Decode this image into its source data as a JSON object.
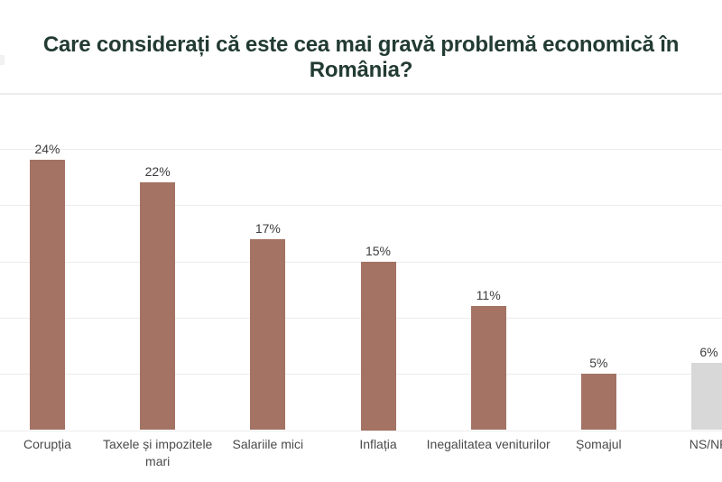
{
  "page": {
    "background": "#ffffff"
  },
  "chart_data": {
    "type": "bar",
    "title": "Care considerați că este cea mai gravă problemă economică în România?",
    "categories": [
      "Corupția",
      "Taxele și impozitele mari",
      "Salariile mici",
      "Inflația",
      "Inegalitatea veniturilor",
      "Șomajul",
      "NS/NR"
    ],
    "values": [
      24,
      22,
      17,
      15,
      11,
      5,
      6
    ],
    "unit": "%",
    "data_labels": [
      "24%",
      "22%",
      "17%",
      "15%",
      "11%",
      "5%",
      "6%"
    ],
    "bar_colors": [
      "#a47363",
      "#a47363",
      "#a47363",
      "#a47363",
      "#a47363",
      "#a47363",
      "#d8d8d8"
    ],
    "xlabel": "",
    "ylabel": "",
    "ylim": [
      0,
      30
    ],
    "gridline_step": 5,
    "grid": true,
    "legend_position": "none",
    "notes": "ultimul segment (NS/NR) este tăiat de marginea din dreapta"
  },
  "colors": {
    "title_text": "#223b33",
    "bar_primary": "#a47363",
    "bar_muted": "#d8d8d8",
    "gridline": "#ececec",
    "value_label": "#3d3d3d",
    "category_label": "#4a4a4a",
    "background": "#ffffff"
  }
}
